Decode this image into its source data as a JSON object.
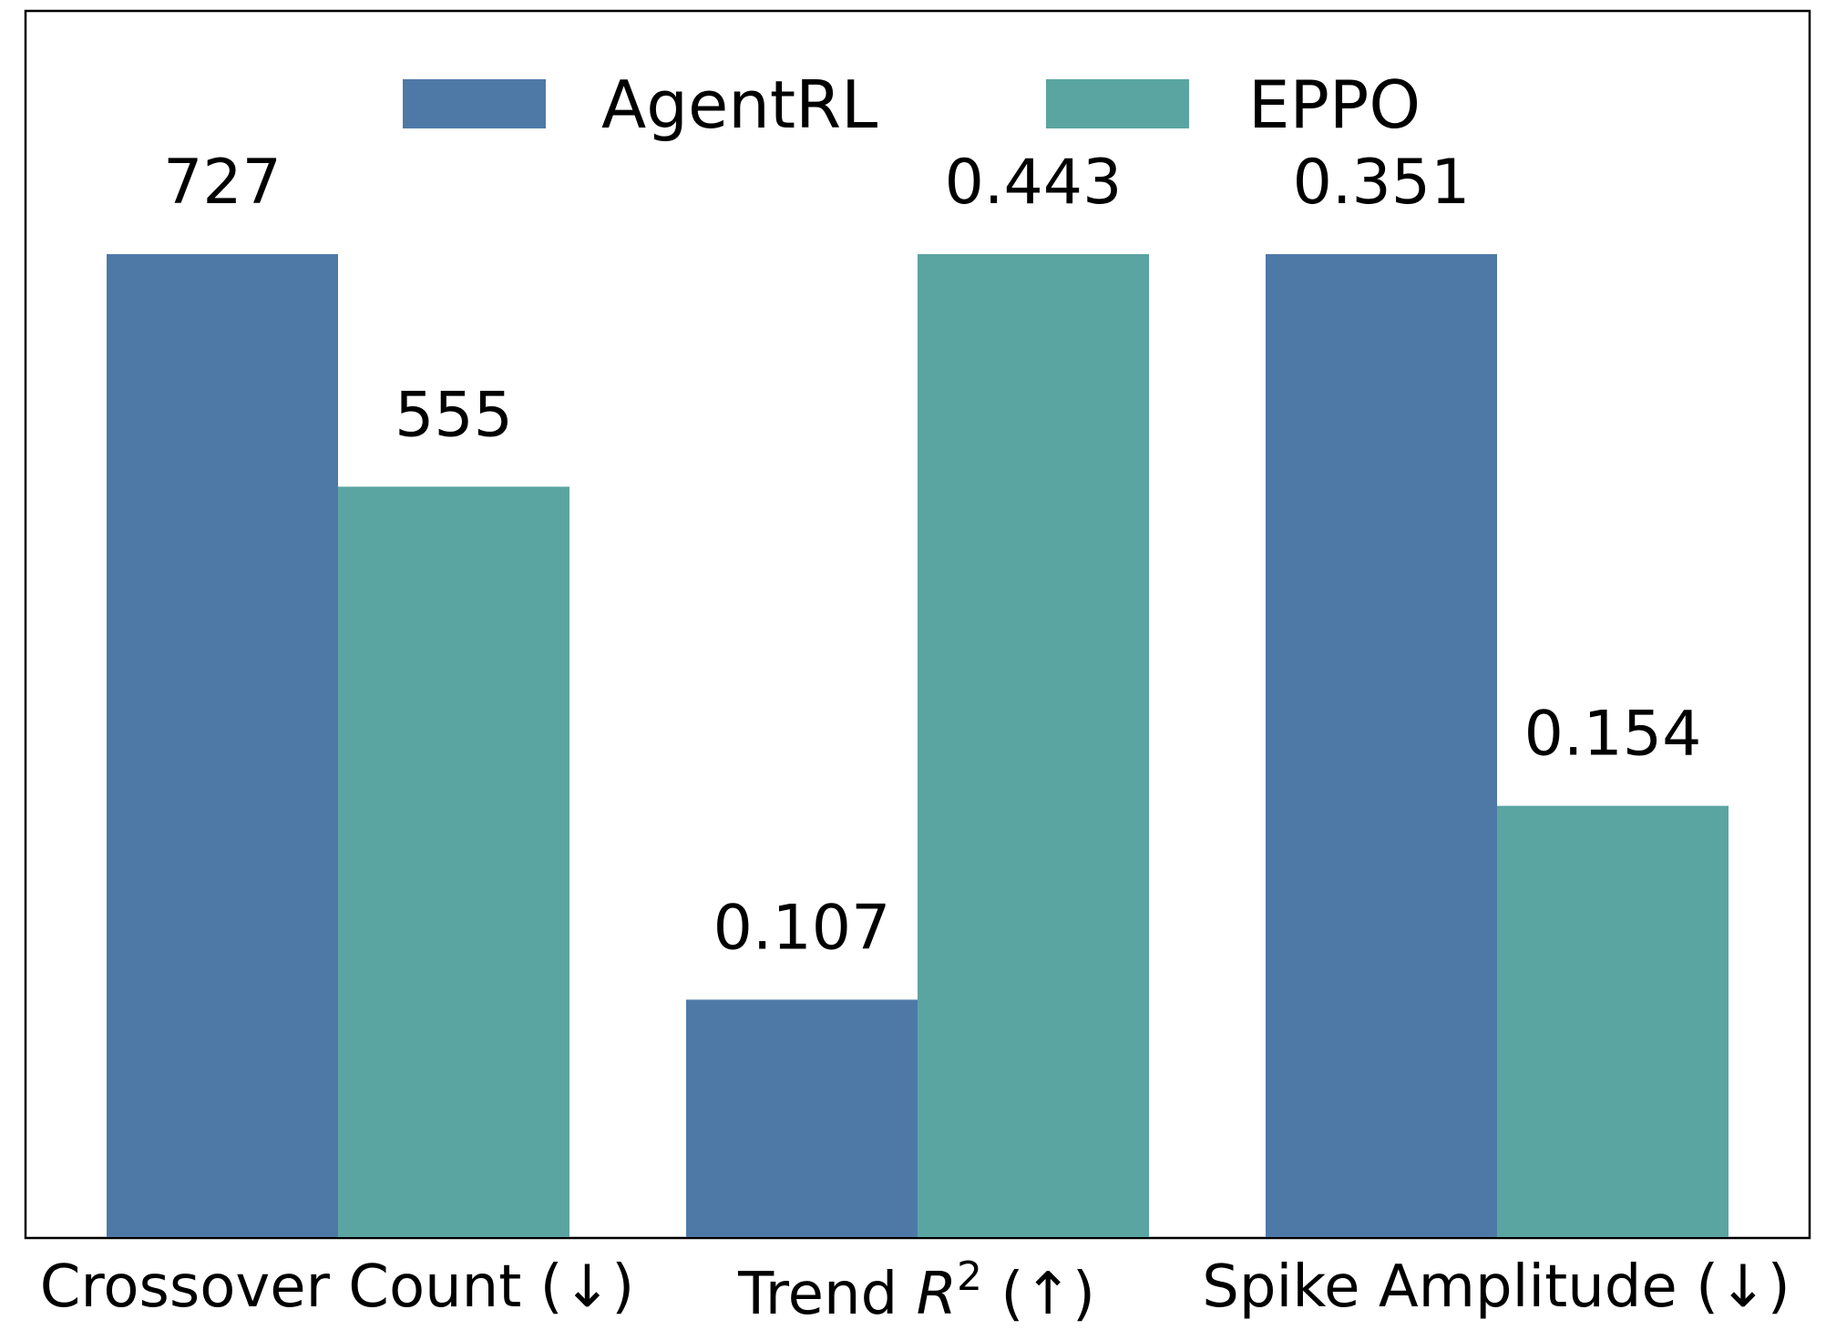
{
  "chart_data": {
    "type": "bar",
    "categories": [
      {
        "text": "Crossover Count (↓)"
      },
      {
        "text": "Trend ",
        "italic": "R",
        "sup": "2",
        "after": " (↑)"
      },
      {
        "text": "Spike Amplitude (↓)"
      }
    ],
    "series": [
      {
        "name": "AgentRL",
        "color": "#4e79a7",
        "values": [
          727,
          0.107,
          0.351
        ],
        "labels": [
          "727",
          "0.107",
          "0.351"
        ]
      },
      {
        "name": "EPPO",
        "color": "#5aa5a1",
        "values": [
          555,
          0.443,
          0.154
        ],
        "labels": [
          "555",
          "0.443",
          "0.154"
        ]
      }
    ],
    "normalization": "each category scaled to its own maximum",
    "legend": "top-center",
    "grid": false,
    "yaxis_visible": false
  }
}
